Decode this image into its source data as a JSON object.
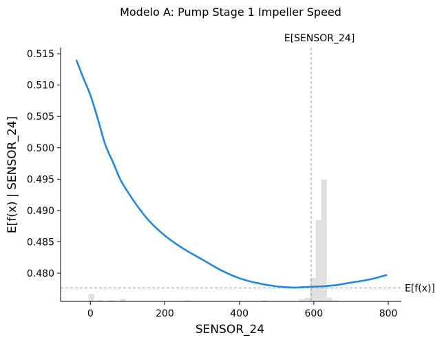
{
  "chart_data": {
    "type": "line",
    "title": "Modelo A: Pump Stage 1 Impeller Speed",
    "xlabel": "SENSOR_24",
    "ylabel": "E[f(x) | SENSOR_24]",
    "xlim": [
      -80,
      835
    ],
    "ylim": [
      0.4755,
      0.516
    ],
    "xticks": [
      0,
      200,
      400,
      600,
      800
    ],
    "xtick_labels": [
      "0",
      "200",
      "400",
      "600",
      "800"
    ],
    "yticks": [
      0.48,
      0.485,
      0.49,
      0.495,
      0.5,
      0.505,
      0.51,
      0.515
    ],
    "ytick_labels": [
      "0.480",
      "0.485",
      "0.490",
      "0.495",
      "0.500",
      "0.505",
      "0.510",
      "0.515"
    ],
    "series": [
      {
        "color": "#1e88e5",
        "x": [
          -37,
          -20,
          0,
          20,
          40,
          60,
          80,
          100,
          130,
          160,
          200,
          250,
          300,
          350,
          400,
          450,
          500,
          545,
          580,
          620,
          660,
          700,
          750,
          795
        ],
        "y": [
          0.5139,
          0.5113,
          0.5084,
          0.5046,
          0.5005,
          0.4978,
          0.495,
          0.493,
          0.4904,
          0.4882,
          0.486,
          0.4839,
          0.4822,
          0.4805,
          0.4792,
          0.4784,
          0.4779,
          0.4777,
          0.4778,
          0.4779,
          0.4781,
          0.4785,
          0.479,
          0.4797
        ]
      }
    ],
    "reference_lines": {
      "vertical": {
        "x": 593,
        "label": "E[SENSOR_24]"
      },
      "horizontal": {
        "y": 0.47765,
        "label": "E[f(x)]"
      }
    },
    "histogram": {
      "color": "#e0e0e0",
      "x_start": [
        -5,
        20,
        50,
        80,
        255,
        460,
        560,
        575,
        590,
        605,
        620,
        635,
        650
      ],
      "x_end": [
        10,
        35,
        65,
        95,
        270,
        475,
        575,
        590,
        605,
        620,
        635,
        650,
        665
      ],
      "fraction_of_plot_height": [
        0.03,
        0.006,
        0.005,
        0.01,
        0.004,
        0.004,
        0.008,
        0.014,
        0.092,
        0.32,
        0.48,
        0.015,
        0.004
      ]
    },
    "grid": false,
    "legend": "none"
  }
}
